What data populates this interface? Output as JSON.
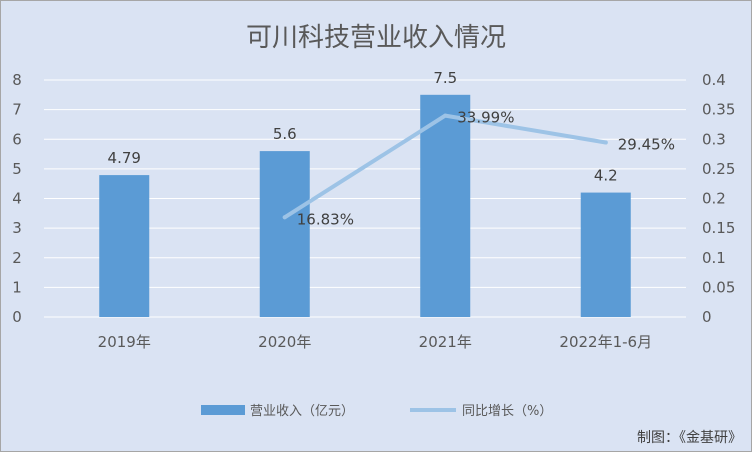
{
  "chart_data": {
    "type": "bar",
    "title": "可川科技营业收入情况",
    "categories": [
      "2019年",
      "2020年",
      "2021年",
      "2022年1-6月"
    ],
    "series": [
      {
        "name": "营业收入（亿元）",
        "type": "bar",
        "axis": "left",
        "values": [
          4.79,
          5.6,
          7.5,
          4.2
        ],
        "labels": [
          "4.79",
          "5.6",
          "7.5",
          "4.2"
        ]
      },
      {
        "name": "同比增长（%）",
        "type": "line",
        "axis": "right",
        "values": [
          null,
          0.1683,
          0.3399,
          0.2945
        ],
        "labels": [
          "",
          "16.83%",
          "33.99%",
          "29.45%"
        ]
      }
    ],
    "y_left": {
      "ylim": [
        0,
        8
      ],
      "ticks": [
        "0",
        "1",
        "2",
        "3",
        "4",
        "5",
        "6",
        "7",
        "8"
      ]
    },
    "y_right": {
      "ylim": [
        0,
        0.4
      ],
      "ticks": [
        "0",
        "0.05",
        "0.1",
        "0.15",
        "0.2",
        "0.25",
        "0.3",
        "0.35",
        "0.4"
      ]
    },
    "grid": true,
    "legend": "bottom"
  },
  "source": "制图：《金基研》",
  "colors": {
    "background": "#dae3f3",
    "bar": "#5b9bd5",
    "line": "#9dc3e6",
    "grid": "#ffffff",
    "text": "#595959"
  }
}
